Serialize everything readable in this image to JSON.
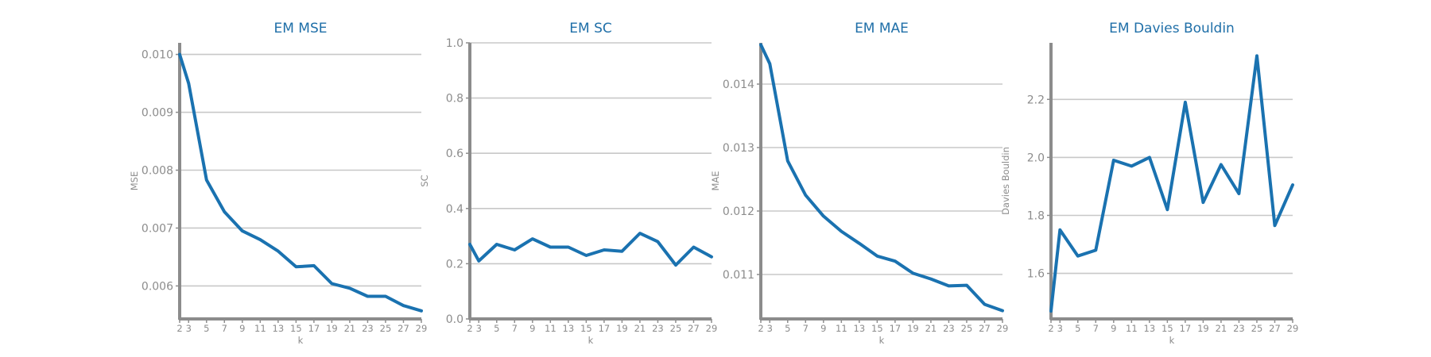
{
  "colors": {
    "line": "#1a72b0",
    "title": "#1f6fa8",
    "text": "#8c8c8c",
    "grid": "#c8c8c8",
    "spine": "#8c8c8c"
  },
  "chart_data": [
    {
      "type": "line",
      "title": "EM MSE",
      "xlabel": "k",
      "ylabel": "MSE",
      "x": [
        2,
        3,
        5,
        7,
        9,
        11,
        13,
        15,
        17,
        19,
        21,
        23,
        25,
        27,
        29
      ],
      "y": [
        0.01,
        0.0095,
        0.00783,
        0.00728,
        0.00695,
        0.0068,
        0.0066,
        0.00633,
        0.00635,
        0.00604,
        0.00596,
        0.00582,
        0.00582,
        0.00566,
        0.00557
      ],
      "xticks": [
        "2",
        "3",
        "5",
        "7",
        "9",
        "11",
        "13",
        "15",
        "17",
        "19",
        "21",
        "23",
        "25",
        "27",
        "29"
      ],
      "yticks": [
        "0.006",
        "0.007",
        "0.008",
        "0.009",
        "0.010"
      ],
      "ylim": [
        0.00543,
        0.0102
      ],
      "xlim": [
        2,
        29
      ],
      "grid": "horizontal"
    },
    {
      "type": "line",
      "title": "EM SC",
      "xlabel": "k",
      "ylabel": "SC",
      "x": [
        2,
        3,
        5,
        7,
        9,
        11,
        13,
        15,
        17,
        19,
        21,
        23,
        25,
        27,
        29
      ],
      "y": [
        0.27,
        0.21,
        0.27,
        0.25,
        0.29,
        0.26,
        0.26,
        0.23,
        0.25,
        0.245,
        0.31,
        0.28,
        0.195,
        0.26,
        0.225
      ],
      "xticks": [
        "2",
        "3",
        "5",
        "7",
        "9",
        "11",
        "13",
        "15",
        "17",
        "19",
        "21",
        "23",
        "25",
        "27",
        "29"
      ],
      "yticks": [
        "0.0",
        "0.2",
        "0.4",
        "0.6",
        "0.8",
        "1.0"
      ],
      "ylim": [
        0.0,
        1.0
      ],
      "xlim": [
        2,
        29
      ],
      "grid": "horizontal"
    },
    {
      "type": "line",
      "title": "EM MAE",
      "xlabel": "k",
      "ylabel": "MAE",
      "x": [
        2,
        3,
        5,
        7,
        9,
        11,
        13,
        15,
        17,
        19,
        21,
        23,
        25,
        27,
        29
      ],
      "y": [
        0.01462,
        0.01432,
        0.01279,
        0.01225,
        0.01192,
        0.01168,
        0.01149,
        0.01129,
        0.01121,
        0.01102,
        0.01093,
        0.01082,
        0.01083,
        0.01053,
        0.01043
      ],
      "xticks": [
        "2",
        "3",
        "5",
        "7",
        "9",
        "11",
        "13",
        "15",
        "17",
        "19",
        "21",
        "23",
        "25",
        "27",
        "29"
      ],
      "yticks": [
        "0.011",
        "0.012",
        "0.013",
        "0.014"
      ],
      "ylim": [
        0.0103,
        0.01465
      ],
      "xlim": [
        2,
        29
      ],
      "grid": "horizontal"
    },
    {
      "type": "line",
      "title": "EM Davies Bouldin",
      "xlabel": "k",
      "ylabel": "Davies Bouldin",
      "x": [
        2,
        3,
        5,
        7,
        9,
        11,
        13,
        15,
        17,
        19,
        21,
        23,
        25,
        27,
        29
      ],
      "y": [
        1.47,
        1.75,
        1.66,
        1.68,
        1.99,
        1.97,
        2.0,
        1.82,
        2.19,
        1.845,
        1.975,
        1.875,
        2.35,
        1.765,
        1.905
      ],
      "xticks": [
        "2",
        "3",
        "5",
        "7",
        "9",
        "11",
        "13",
        "15",
        "17",
        "19",
        "21",
        "23",
        "25",
        "27",
        "29"
      ],
      "yticks": [
        "1.6",
        "1.8",
        "2.0",
        "2.2"
      ],
      "ylim": [
        1.443,
        2.395
      ],
      "xlim": [
        2,
        29
      ],
      "grid": "horizontal"
    }
  ]
}
